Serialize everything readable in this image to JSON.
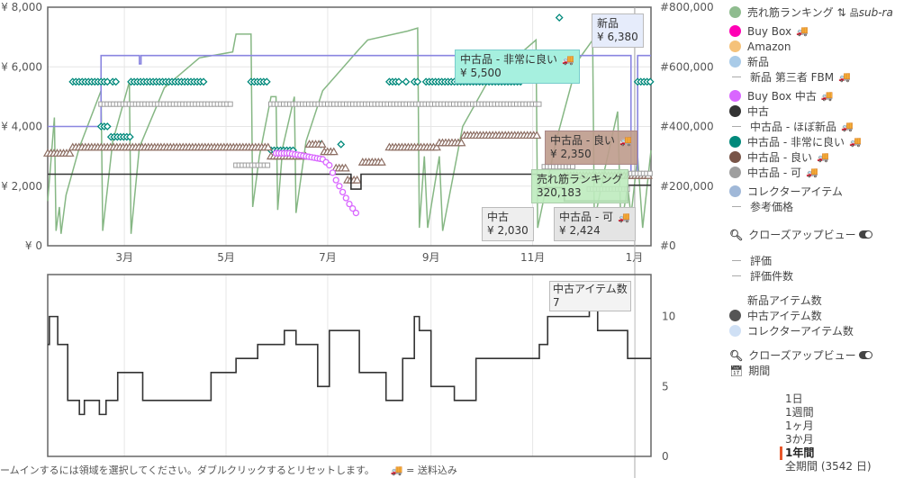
{
  "chart_data": [
    {
      "type": "line",
      "title": "",
      "x_axis": {
        "range": [
          "01/14",
          "01/11"
        ],
        "tick_labels": [
          "3月",
          "5月",
          "7月",
          "9月",
          "11月",
          "1月"
        ],
        "tick_dates": [
          "03/01",
          "05/01",
          "07/01",
          "09/01",
          "11/01",
          "01/01"
        ]
      },
      "y_left": {
        "range": [
          0,
          8000
        ],
        "tick_labels": [
          "¥ 0",
          "¥ 2,000",
          "¥ 4,000",
          "¥ 6,000",
          "¥ 8,000"
        ],
        "ticks": [
          0,
          2000,
          4000,
          6000,
          8000
        ]
      },
      "y_right": {
        "range": [
          0,
          800000
        ],
        "tick_labels": [
          "#0",
          "#200,000",
          "#400,000",
          "#600,000",
          "#800,000"
        ],
        "ticks": [
          0,
          200000,
          400000,
          600000,
          800000
        ]
      },
      "grid": true,
      "series": [
        {
          "name": "売れ筋ランキング",
          "axis": "right",
          "style": "line",
          "color": "#86b784",
          "points": [
            [
              "01/14",
              150000
            ],
            [
              "01/18",
              430000
            ],
            [
              "01/19",
              50000
            ],
            [
              "01/21",
              130000
            ],
            [
              "01/22",
              40000
            ],
            [
              "01/25",
              170000
            ],
            [
              "02/02",
              330000
            ],
            [
              "02/15",
              520000
            ],
            [
              "02/16",
              50000
            ],
            [
              "02/22",
              350000
            ],
            [
              "03/04",
              550000
            ],
            [
              "03/05",
              40000
            ],
            [
              "03/10",
              330000
            ],
            [
              "03/25",
              530000
            ],
            [
              "04/15",
              630000
            ],
            [
              "05/05",
              650000
            ],
            [
              "05/07",
              710000
            ],
            [
              "05/16",
              710000
            ],
            [
              "05/17",
              130000
            ],
            [
              "05/21",
              300000
            ],
            [
              "05/28",
              500000
            ],
            [
              "05/31",
              500000
            ],
            [
              "06/01",
              120000
            ],
            [
              "06/04",
              330000
            ],
            [
              "06/11",
              500000
            ],
            [
              "06/12",
              110000
            ],
            [
              "06/18",
              350000
            ],
            [
              "06/28",
              520000
            ],
            [
              "07/20",
              660000
            ],
            [
              "07/25",
              690000
            ],
            [
              "08/18",
              720000
            ],
            [
              "08/24",
              730000
            ],
            [
              "08/25",
              60000
            ],
            [
              "08/28",
              300000
            ],
            [
              "08/30",
              60000
            ],
            [
              "09/06",
              300000
            ],
            [
              "09/08",
              50000
            ],
            [
              "09/20",
              400000
            ],
            [
              "10/05",
              550000
            ],
            [
              "11/03",
              690000
            ],
            [
              "11/04",
              60000
            ],
            [
              "11/15",
              350000
            ],
            [
              "11/28",
              620000
            ],
            [
              "12/07",
              690000
            ],
            [
              "12/08",
              80000
            ],
            [
              "12/14",
              250000
            ],
            [
              "12/22",
              450000
            ],
            [
              "12/24",
              60000
            ],
            [
              "12/28",
              200000
            ],
            [
              "12/30",
              100000
            ],
            [
              "01/03",
              300000
            ],
            [
              "01/06",
              60000
            ],
            [
              "01/11",
              320183
            ]
          ]
        },
        {
          "name": "新品",
          "axis": "left",
          "style": "step",
          "color": "#8a86e0",
          "points": [
            [
              "01/14",
              4000
            ],
            [
              "02/15",
              6380
            ],
            [
              "03/10",
              6100
            ],
            [
              "03/11",
              6380
            ],
            [
              "12/30",
              2450
            ],
            [
              "01/03",
              6380
            ],
            [
              "01/11",
              6380
            ]
          ]
        },
        {
          "name": "中古品 - 非常に良い",
          "axis": "left",
          "style": "diamond",
          "color": "#00897b",
          "segments": [
            [
              [
                "01/29",
                "02/20"
              ],
              5500
            ],
            [
              [
                "02/22",
                "02/25"
              ],
              5500
            ],
            [
              [
                "03/05",
                "04/18"
              ],
              5500
            ],
            [
              [
                "05/16",
                "05/27"
              ],
              5500
            ],
            [
              [
                "08/07",
                "08/14"
              ],
              5500
            ],
            [
              [
                "08/17",
                "08/17"
              ],
              5500
            ],
            [
              [
                "08/22",
                "08/25"
              ],
              5500
            ],
            [
              [
                "08/29",
                "10/25"
              ],
              5500
            ],
            [
              [
                "01/03",
                "01/11"
              ],
              5500
            ],
            [
              [
                "02/15",
                "02/19"
              ],
              4000
            ],
            [
              [
                "02/21",
                "03/05"
              ],
              3650
            ],
            [
              [
                "05/28",
                "06/12"
              ],
              3200
            ],
            [
              [
                "06/27",
                "06/27"
              ],
              3400
            ],
            [
              [
                "07/09",
                "07/09"
              ],
              3400
            ],
            [
              [
                "11/17",
                "11/17"
              ],
              7650
            ]
          ]
        },
        {
          "name": "中古品 - 良い",
          "axis": "left",
          "style": "triangle",
          "color": "#8d6e63",
          "segments": [
            [
              [
                "01/14",
                "01/28"
              ],
              3100
            ],
            [
              [
                "01/29",
                "05/27"
              ],
              3300
            ],
            [
              [
                "05/28",
                "06/19"
              ],
              3000
            ],
            [
              [
                "06/20",
                "06/28"
              ],
              3400
            ],
            [
              [
                "06/29",
                "07/05"
              ],
              3150
            ],
            [
              [
                "07/06",
                "07/12"
              ],
              2600
            ],
            [
              [
                "07/13",
                "07/20"
              ],
              2200
            ],
            [
              [
                "07/22",
                "08/03"
              ],
              2800
            ],
            [
              [
                "08/07",
                "09/05"
              ],
              3300
            ],
            [
              [
                "09/06",
                "09/20"
              ],
              3450
            ],
            [
              [
                "09/21",
                "11/05"
              ],
              3700
            ],
            [
              [
                "11/20",
                "12/28"
              ],
              2350
            ],
            [
              [
                "12/29",
                "01/11"
              ],
              2350
            ]
          ]
        },
        {
          "name": "中古品 - 可",
          "axis": "left",
          "style": "square",
          "color": "#9e9e9e",
          "segments": [
            [
              [
                "02/15",
                "05/05"
              ],
              4750
            ],
            [
              [
                "05/07",
                "05/27"
              ],
              2700
            ],
            [
              [
                "05/28",
                "11/05"
              ],
              4750
            ],
            [
              [
                "11/08",
                "11/25"
              ],
              2650
            ],
            [
              [
                "12/05",
                "12/28"
              ],
              1900
            ],
            [
              [
                "12/30",
                "01/11"
              ],
              2424
            ]
          ]
        },
        {
          "name": "中古",
          "axis": "left",
          "style": "step",
          "color": "#333333",
          "points": [
            [
              "01/14",
              2400
            ],
            [
              "07/15",
              1900
            ],
            [
              "07/21",
              2400
            ],
            [
              "11/05",
              1950
            ],
            [
              "11/20",
              1500
            ],
            [
              "12/28",
              2030
            ],
            [
              "01/11",
              2030
            ]
          ]
        },
        {
          "name": "Buy Box 中古",
          "axis": "left",
          "style": "circle",
          "color": "#d966ff",
          "points": [
            [
              "05/31",
              3100
            ],
            [
              "06/08",
              3100
            ],
            [
              "06/28",
              2900
            ],
            [
              "07/02",
              2700
            ],
            [
              "07/06",
              2200
            ],
            [
              "07/10",
              1800
            ],
            [
              "07/14",
              1400
            ],
            [
              "07/18",
              1100
            ]
          ]
        }
      ]
    },
    {
      "type": "line",
      "title": "",
      "x_axis": {
        "range": [
          "01/14",
          "01/11"
        ]
      },
      "y_right": {
        "range": [
          0,
          13
        ],
        "tick_labels": [
          "0",
          "5",
          "10"
        ],
        "ticks": [
          0,
          5,
          10
        ]
      },
      "grid": true,
      "series": [
        {
          "name": "中古アイテム数",
          "style": "step",
          "color": "#333333",
          "points": [
            [
              "01/14",
              8
            ],
            [
              "01/15",
              10
            ],
            [
              "01/20",
              8
            ],
            [
              "01/26",
              4
            ],
            [
              "02/02",
              3
            ],
            [
              "02/05",
              4
            ],
            [
              "02/14",
              3
            ],
            [
              "02/18",
              4
            ],
            [
              "02/25",
              6
            ],
            [
              "03/12",
              4
            ],
            [
              "04/22",
              6
            ],
            [
              "05/07",
              7
            ],
            [
              "05/20",
              8
            ],
            [
              "06/05",
              9
            ],
            [
              "06/12",
              8
            ],
            [
              "06/25",
              5
            ],
            [
              "07/02",
              9
            ],
            [
              "07/20",
              6
            ],
            [
              "08/05",
              4
            ],
            [
              "08/15",
              7
            ],
            [
              "08/22",
              10
            ],
            [
              "08/25",
              9
            ],
            [
              "09/01",
              5
            ],
            [
              "09/15",
              4
            ],
            [
              "09/28",
              7
            ],
            [
              "10/20",
              7
            ],
            [
              "11/05",
              8
            ],
            [
              "11/10",
              10
            ],
            [
              "12/05",
              11
            ],
            [
              "12/10",
              9
            ],
            [
              "12/28",
              7
            ],
            [
              "01/11",
              7
            ]
          ]
        }
      ]
    }
  ],
  "tooltips": {
    "new": {
      "label": "新品",
      "value": "¥ 6,380"
    },
    "used_very_good": {
      "label": "中古品 - 非常に良い",
      "value": "¥ 5,500"
    },
    "used_good": {
      "label": "中古品 - 良い",
      "value": "¥ 2,350"
    },
    "sales_rank": {
      "label": "売れ筋ランキング",
      "value": "320,183"
    },
    "used_acceptable": {
      "label": "中古品 - 可",
      "value": "¥ 2,424"
    },
    "used": {
      "label": "中古",
      "value": "¥ 2,030"
    },
    "used_count": {
      "label": "中古アイテム数",
      "value": "7"
    }
  },
  "legend": {
    "items": [
      {
        "label": "売れ筋ランキング",
        "color": "#8fbc8f",
        "marker": "dot"
      },
      {
        "label": "Buy Box",
        "color": "#ff00b4",
        "marker": "dot",
        "truck": true
      },
      {
        "label": "Amazon",
        "color": "#f5c27a",
        "marker": "dot"
      },
      {
        "label": "新品",
        "color": "#a9cbe8",
        "marker": "dot"
      },
      {
        "label": "新品 第三者 FBM",
        "color": "#aaaaaa",
        "marker": "dash",
        "truck": true
      },
      {
        "label": "Buy Box 中古",
        "color": "#d966ff",
        "marker": "dot",
        "truck": true
      },
      {
        "label": "中古",
        "color": "#333333",
        "marker": "dot"
      },
      {
        "label": "中古品 - ほぼ新品",
        "color": "#aaaaaa",
        "marker": "dash",
        "truck": true
      },
      {
        "label": "中古品 - 非常に良い",
        "color": "#00897b",
        "marker": "dot",
        "truck": true
      },
      {
        "label": "中古品 - 良い",
        "color": "#795548",
        "marker": "dot",
        "truck": true
      },
      {
        "label": "中古品 - 可",
        "color": "#9e9e9e",
        "marker": "dot",
        "truck": true
      },
      {
        "label": "コレクターアイテム",
        "color": "#a0b8d8",
        "marker": "dot"
      },
      {
        "label": "参考価格",
        "color": "#aaaaaa",
        "marker": "dash"
      }
    ],
    "sort_icon": "sort-numeric-icon",
    "sub_rank_label": "sub-ra",
    "closeup_label": "クローズアップビュー",
    "lower_items": [
      {
        "label": "評価",
        "color": "#aaaaaa",
        "marker": "dash"
      },
      {
        "label": "評価件数",
        "color": "#aaaaaa",
        "marker": "dash"
      },
      {
        "label": "新品アイテム数",
        "color": "#ffffff",
        "marker": "dot"
      },
      {
        "label": "中古アイテム数",
        "color": "#555555",
        "marker": "dot"
      },
      {
        "label": "コレクターアイテム数",
        "color": "#cfe0f5",
        "marker": "dot"
      }
    ],
    "closeup_label_2": "クローズアップビュー"
  },
  "period": {
    "label": "期間",
    "options": [
      "1日",
      "1週間",
      "1ヶ月",
      "3か月",
      "1年間",
      "全期間 (3542 日)"
    ],
    "selected": "1年間"
  },
  "footer": {
    "hint": "ームインするには領域を選択してください。ダブルクリックするとリセットします。",
    "shipping_note": "= 送料込み"
  }
}
